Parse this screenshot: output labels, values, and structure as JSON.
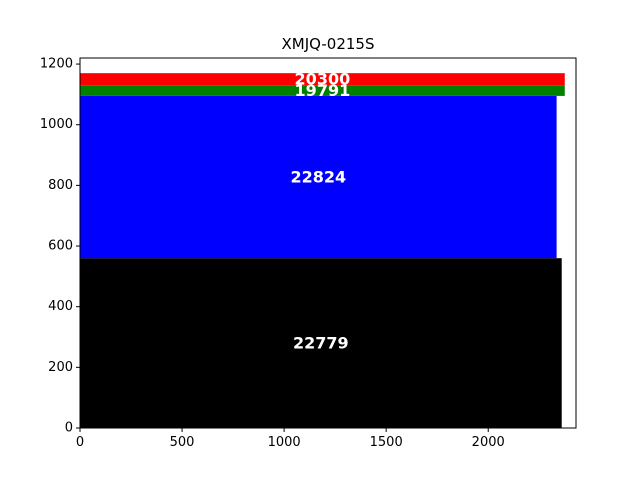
{
  "chart_data": {
    "type": "bar",
    "orientation": "horizontal-stacked-variable-height",
    "title": "XMJQ-0215S",
    "xlabel": "",
    "ylabel": "",
    "xlim": [
      0,
      2430
    ],
    "ylim": [
      0,
      1220
    ],
    "x_ticks": [
      0,
      500,
      1000,
      1500,
      2000
    ],
    "y_ticks": [
      0,
      200,
      400,
      600,
      800,
      1000,
      1200
    ],
    "grid": false,
    "bars": [
      {
        "label": "22779",
        "y0": 0,
        "y1": 560,
        "width": 2360,
        "color": "#000000"
      },
      {
        "label": "22824",
        "y0": 560,
        "y1": 1095,
        "width": 2335,
        "color": "#0000ff"
      },
      {
        "label": "19791",
        "y0": 1095,
        "y1": 1130,
        "width": 2375,
        "color": "#008000"
      },
      {
        "label": "20300",
        "y0": 1130,
        "y1": 1170,
        "width": 2375,
        "color": "#ff0000"
      }
    ]
  }
}
